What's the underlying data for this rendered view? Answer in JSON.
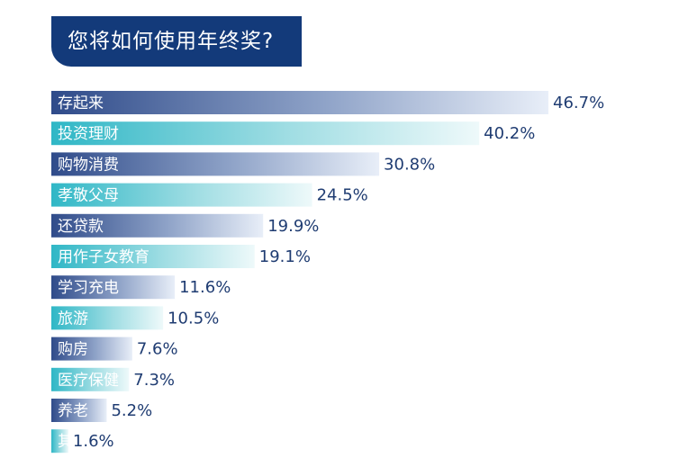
{
  "chart_data": {
    "type": "bar",
    "orientation": "horizontal",
    "title": "您将如何使用年终奖?",
    "unit": "%",
    "categories": [
      "存起来",
      "投资理财",
      "购物消费",
      "孝敬父母",
      "还贷款",
      "用作子女教育",
      "学习充电",
      "旅游",
      "购房",
      "医疗保健",
      "养老",
      "其他"
    ],
    "values": [
      46.7,
      40.2,
      30.8,
      24.5,
      19.9,
      19.1,
      11.6,
      10.5,
      7.6,
      7.3,
      5.2,
      1.6
    ],
    "value_labels": [
      "46.7%",
      "40.2%",
      "30.8%",
      "24.5%",
      "19.9%",
      "19.1%",
      "11.6%",
      "10.5%",
      "7.6%",
      "7.3%",
      "5.2%",
      "1.6%"
    ],
    "colors": {
      "navy": "#2f4b8a",
      "teal": "#33bcc9",
      "title_bg": "#133a7a",
      "value_text": "#1f3c72"
    }
  }
}
